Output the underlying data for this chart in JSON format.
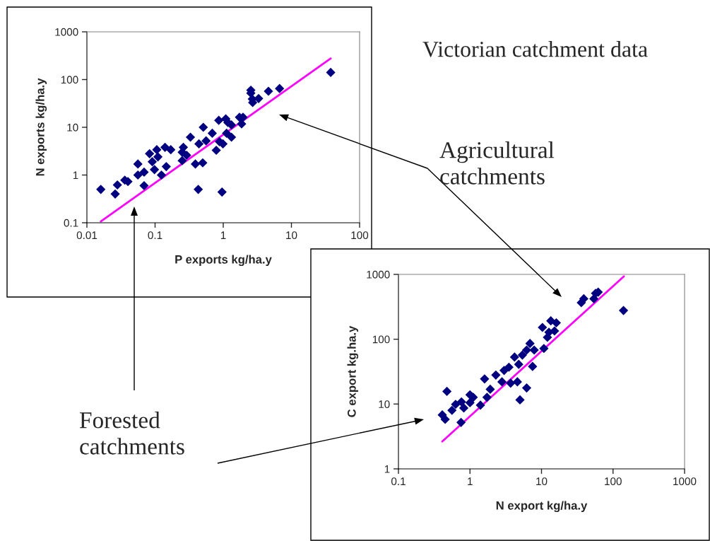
{
  "chart_data": [
    {
      "type": "scatter",
      "xlabel": "P exports kg/ha.y",
      "ylabel": "N exports kg/ha.y",
      "log": "xy",
      "grid": false,
      "legend": false,
      "marker": "diamond",
      "xlim": [
        0.01,
        100
      ],
      "ylim": [
        0.1,
        1000
      ],
      "xticks": [
        0.01,
        0.1,
        1,
        10,
        100
      ],
      "yticks": [
        0.1,
        1,
        10,
        100,
        1000
      ],
      "annotations": [
        "Victorian catchment data",
        "Agricultural catchments",
        "Forested catchments"
      ],
      "series": [
        {
          "color": "#000080",
          "x": [
            0.016,
            0.026,
            0.028,
            0.036,
            0.04,
            0.056,
            0.056,
            0.069,
            0.069,
            0.083,
            0.091,
            0.106,
            0.11,
            0.098,
            0.124,
            0.146,
            0.14,
            0.17,
            0.25,
            0.26,
            0.25,
            0.33,
            0.29,
            0.44,
            0.39,
            0.5,
            0.43,
            0.51,
            0.56,
            0.69,
            0.79,
            0.86,
            0.96,
            0.88,
            1.09,
            1.17,
            1.32,
            1.12,
            1.32,
            0.99,
            1.73,
            1.95,
            1.86,
            2.54,
            2.54,
            2.67,
            2.7,
            3.3,
            4.6,
            6.7,
            37.7
          ],
          "values": [
            0.5,
            0.4,
            0.62,
            0.78,
            0.73,
            1.7,
            1.0,
            1.15,
            0.6,
            2.8,
            1.9,
            3.4,
            2.4,
            1.3,
            1.0,
            1.5,
            3.8,
            3.4,
            3.0,
            3.8,
            2.0,
            6.2,
            2.6,
            4.5,
            1.7,
            1.8,
            0.5,
            10,
            5.2,
            7.5,
            3.3,
            14,
            0.44,
            5.0,
            15,
            12.6,
            11.2,
            7.5,
            6.2,
            4.5,
            16.2,
            16.2,
            11.8,
            60,
            52,
            39,
            33,
            40,
            57,
            65,
            141
          ]
        },
        {
          "type": "line",
          "color": "#ff00ff",
          "marker": "none",
          "x": [
            0.016,
            37.7
          ],
          "values": [
            0.107,
            277
          ]
        }
      ]
    },
    {
      "type": "scatter",
      "xlabel": "N export kg/ha.y",
      "ylabel": "C export kg.ha.y",
      "log": "xy",
      "grid": false,
      "legend": false,
      "marker": "diamond",
      "xlim": [
        0.1,
        1000
      ],
      "ylim": [
        1,
        1000
      ],
      "xticks": [
        0.1,
        1,
        10,
        100,
        1000
      ],
      "yticks": [
        1,
        10,
        100,
        1000
      ],
      "series": [
        {
          "color": "#000080",
          "x": [
            0.476,
            0.41,
            0.45,
            0.56,
            0.63,
            0.76,
            0.82,
            0.75,
            1.0,
            1.0,
            1.11,
            1.4,
            1.6,
            1.73,
            1.92,
            2.3,
            3.0,
            2.8,
            3.5,
            3.7,
            4.6,
            5.0,
            6.2,
            4.2,
            4.8,
            5.4,
            6.9,
            7.5,
            7.9,
            6.2,
            10.8,
            10.3,
            12.1,
            12.7,
            13.5,
            15.2,
            16.1,
            36,
            39,
            54,
            57,
            62,
            140
          ],
          "values": [
            15.7,
            6.8,
            5.8,
            8.0,
            9.9,
            10.8,
            8.7,
            5.2,
            10.5,
            13.9,
            12.7,
            9.6,
            24.4,
            12.7,
            16.9,
            28,
            33,
            22,
            37,
            21,
            22,
            11.6,
            17.7,
            53,
            41,
            57,
            86,
            38,
            68,
            68,
            72,
            152,
            107,
            128,
            192,
            134,
            179,
            366,
            421,
            421,
            511,
            532,
            277
          ]
        },
        {
          "type": "line",
          "color": "#ff00ff",
          "marker": "none",
          "x": [
            0.41,
            142
          ],
          "values": [
            2.65,
            935
          ]
        }
      ]
    }
  ]
}
